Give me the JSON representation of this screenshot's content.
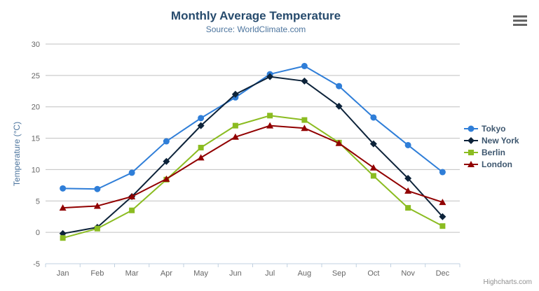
{
  "chart_data": {
    "type": "line",
    "title": "Monthly Average Temperature",
    "subtitle": "Source: WorldClimate.com",
    "xlabel": "",
    "ylabel": "Temperature (°C)",
    "categories": [
      "Jan",
      "Feb",
      "Mar",
      "Apr",
      "May",
      "Jun",
      "Jul",
      "Aug",
      "Sep",
      "Oct",
      "Nov",
      "Dec"
    ],
    "ylim": [
      -5,
      30
    ],
    "ytick_step": 5,
    "grid": true,
    "legend_position": "right-middle",
    "series": [
      {
        "name": "Tokyo",
        "color": "#2f7ed8",
        "marker": "circle",
        "values": [
          7.0,
          6.9,
          9.5,
          14.5,
          18.2,
          21.5,
          25.2,
          26.5,
          23.3,
          18.3,
          13.9,
          9.6
        ]
      },
      {
        "name": "New York",
        "color": "#0d233a",
        "marker": "diamond",
        "values": [
          -0.2,
          0.8,
          5.7,
          11.3,
          17.0,
          22.0,
          24.8,
          24.1,
          20.1,
          14.1,
          8.6,
          2.5
        ]
      },
      {
        "name": "Berlin",
        "color": "#8bbc21",
        "marker": "square",
        "values": [
          -0.9,
          0.6,
          3.5,
          8.4,
          13.5,
          17.0,
          18.6,
          17.9,
          14.3,
          9.0,
          3.9,
          1.0
        ]
      },
      {
        "name": "London",
        "color": "#910000",
        "marker": "triangle",
        "values": [
          3.9,
          4.2,
          5.7,
          8.5,
          11.9,
          15.2,
          17.0,
          16.6,
          14.2,
          10.3,
          6.6,
          4.8
        ]
      }
    ]
  },
  "chrome": {
    "export_menu_icon": "hamburger-menu-icon",
    "credits": "Highcharts.com"
  },
  "colors": {
    "title": "#274b6d",
    "subtitle": "#4d759e",
    "axis_title": "#4d759e",
    "tick_label": "#666666",
    "gridline": "#C0C0C0",
    "axis_line": "#C0D0E0",
    "legend_text": "#3E576F",
    "credits_text": "#909090",
    "export_icon": "#666666"
  }
}
